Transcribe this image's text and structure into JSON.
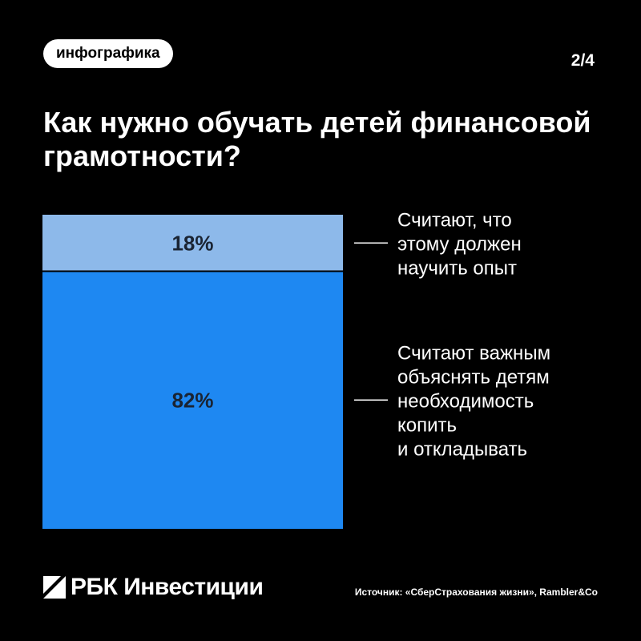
{
  "header": {
    "tag": "инфографика",
    "page_indicator": "2/4"
  },
  "title": "Как нужно обучать детей финансовой грамотности?",
  "chart_data": {
    "type": "bar",
    "stacked": true,
    "orientation": "vertical",
    "categories": [
      "Считают, что этому должен научить опыт",
      "Считают важным объяснять детям необходимость копить и откладывать"
    ],
    "values": [
      18,
      82
    ],
    "value_labels": [
      "18%",
      "82%"
    ],
    "label_lines": [
      [
        "Считают, что",
        "этому должен",
        "научить опыт"
      ],
      [
        "Считают важным",
        "объяснять детям",
        "необходимость",
        "копить",
        "и откладывать"
      ]
    ],
    "unit": "%",
    "colors": [
      "#8DB9EA",
      "#1E88F2"
    ],
    "value_label_color": "#1A2433"
  },
  "footer": {
    "brand": "РБК Инвестиции",
    "source": "Источник: «СберСтрахования жизни», Rambler&Co"
  }
}
